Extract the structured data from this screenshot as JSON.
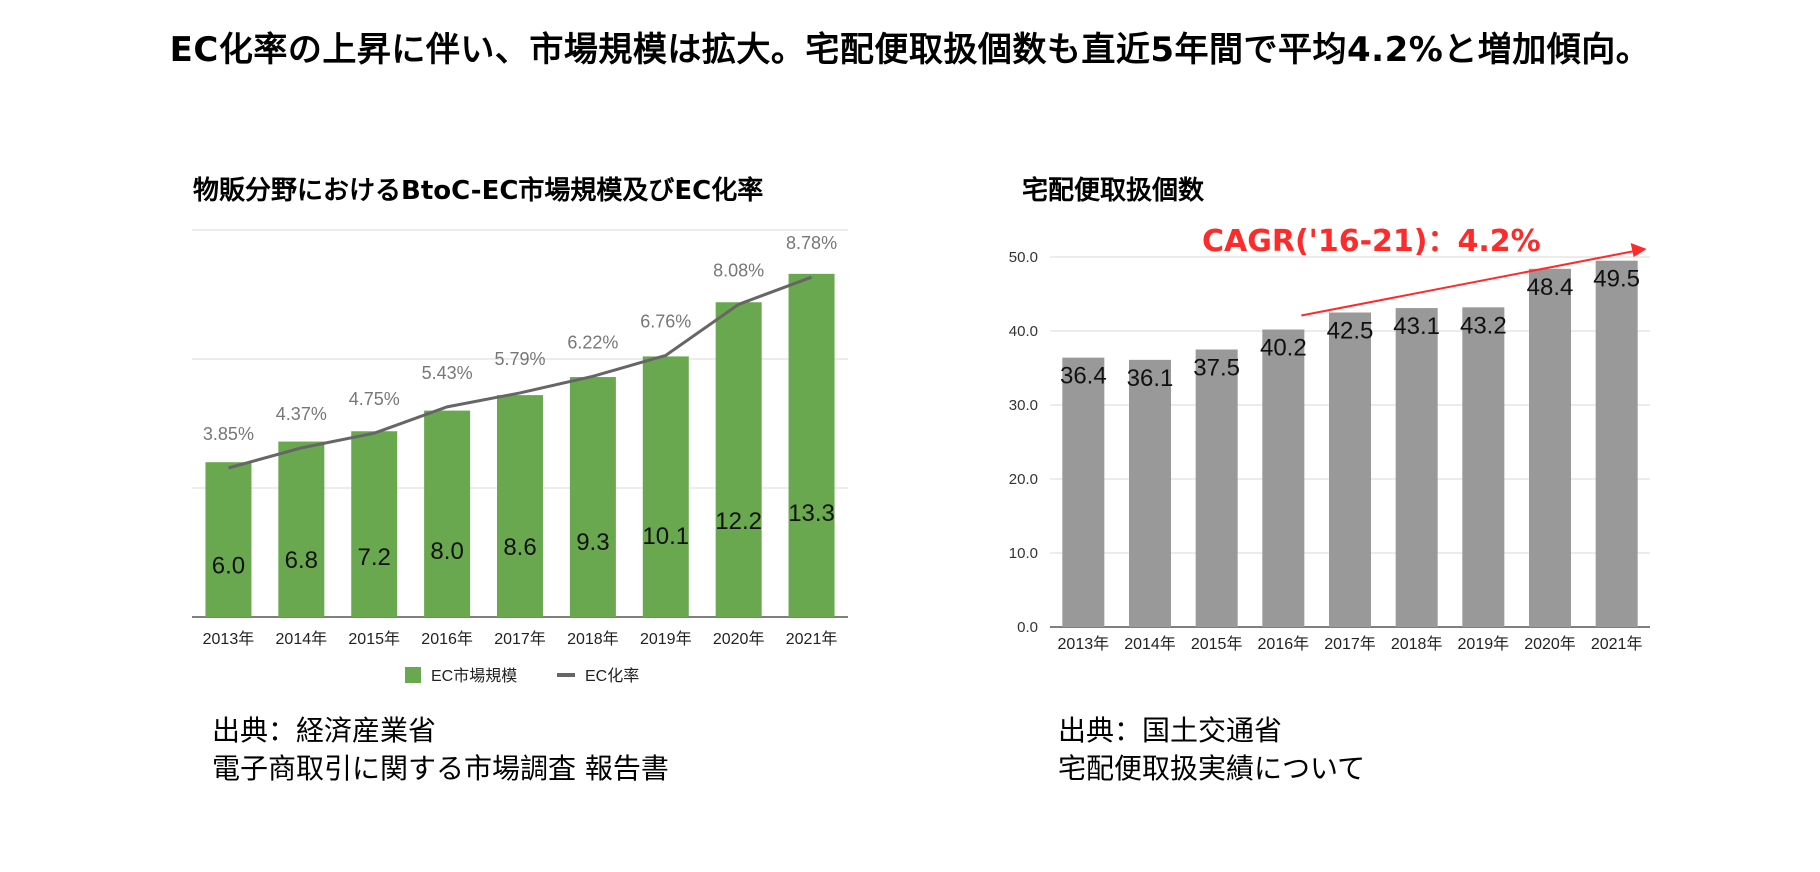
{
  "headline": "EC化率の上昇に伴い、市場規模は拡大。宅配便取扱個数も直近5年間で平均4.2%と増加傾向。",
  "chart_data": [
    {
      "type": "bar",
      "title": "物販分野におけるBtoC-EC市場規模及びEC化率",
      "categories": [
        "2013年",
        "2014年",
        "2015年",
        "2016年",
        "2017年",
        "2018年",
        "2019年",
        "2020年",
        "2021年"
      ],
      "series": [
        {
          "name": "EC市場規模",
          "type": "bar",
          "color": "#6aa84f",
          "values": [
            6.0,
            6.8,
            7.2,
            8.0,
            8.6,
            9.3,
            10.1,
            12.2,
            13.3
          ],
          "labels": [
            "6.0",
            "6.8",
            "7.2",
            "8.0",
            "8.6",
            "9.3",
            "10.1",
            "12.2",
            "13.3"
          ]
        },
        {
          "name": "EC化率",
          "type": "line",
          "color": "#666666",
          "values": [
            3.85,
            4.37,
            4.75,
            5.43,
            5.79,
            6.22,
            6.76,
            8.08,
            8.78
          ],
          "labels": [
            "3.85%",
            "4.37%",
            "4.75%",
            "5.43%",
            "5.79%",
            "6.22%",
            "6.76%",
            "8.08%",
            "8.78%"
          ]
        }
      ],
      "ylim": [
        0,
        15
      ],
      "y2lim": [
        0,
        10
      ],
      "grid": true,
      "legend": "bottom",
      "source_lines": [
        "出典：経済産業省",
        "電子商取引に関する市場調査 報告書"
      ]
    },
    {
      "type": "bar",
      "title": "宅配便取扱個数",
      "categories": [
        "2013年",
        "2014年",
        "2015年",
        "2016年",
        "2017年",
        "2018年",
        "2019年",
        "2020年",
        "2021年"
      ],
      "series": [
        {
          "color": "#999999",
          "values": [
            36.4,
            36.1,
            37.5,
            40.2,
            42.5,
            43.1,
            43.2,
            48.4,
            49.5
          ],
          "labels": [
            "36.4",
            "36.1",
            "37.5",
            "40.2",
            "42.5",
            "43.1",
            "43.2",
            "48.4",
            "49.5"
          ]
        }
      ],
      "ylim": [
        0,
        50
      ],
      "yticks": [
        "0.0",
        "10.0",
        "20.0",
        "30.0",
        "40.0",
        "50.0"
      ],
      "grid": true,
      "annotation": {
        "text": "CAGR('16-21)：4.2%",
        "color": "#ff2a2a",
        "arrow_from": "2016年",
        "arrow_to": "2021年"
      },
      "source_lines": [
        "出典：国土交通省",
        "宅配便取扱実績について"
      ]
    }
  ]
}
